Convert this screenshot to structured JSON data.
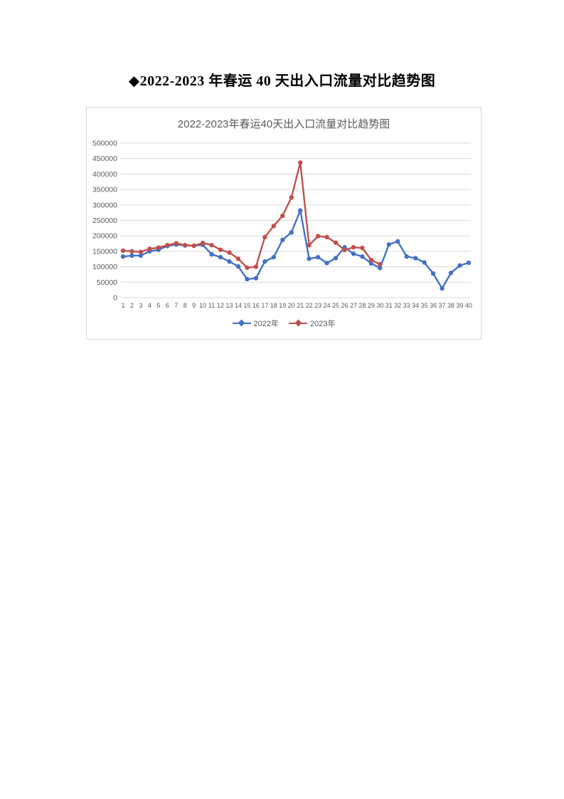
{
  "page": {
    "title": "◆2022-2023 年春运 40 天出入口流量对比趋势图"
  },
  "chart_data": {
    "type": "line",
    "title": "2022-2023年春运40天出入口流量对比趋势图",
    "xlabel": "",
    "ylabel": "",
    "ylim": [
      0,
      500000
    ],
    "ytick_step": 50000,
    "ytick_labels": [
      "0",
      "50000",
      "100000",
      "150000",
      "200000",
      "250000",
      "300000",
      "350000",
      "400000",
      "450000",
      "500000"
    ],
    "grid": true,
    "legend_position": "bottom",
    "categories": [
      1,
      2,
      3,
      4,
      5,
      6,
      7,
      8,
      9,
      10,
      11,
      12,
      13,
      14,
      15,
      16,
      17,
      18,
      19,
      20,
      21,
      22,
      23,
      24,
      25,
      26,
      27,
      28,
      29,
      30,
      31,
      32,
      33,
      34,
      35,
      36,
      37,
      38,
      39,
      40
    ],
    "series": [
      {
        "name": "2022年",
        "color": "#4472C4",
        "marker": "round",
        "values": [
          133000,
          136000,
          136000,
          150000,
          155000,
          167000,
          172000,
          169000,
          168000,
          171000,
          140000,
          131000,
          117000,
          101000,
          60000,
          63000,
          117000,
          131000,
          187000,
          211000,
          282000,
          126000,
          131000,
          112000,
          128000,
          163000,
          142000,
          133000,
          111000,
          96000,
          172000,
          182000,
          133000,
          128000,
          114000,
          78000,
          30000,
          80000,
          104000,
          113000
        ]
      },
      {
        "name": "2023年",
        "color": "#C0504D",
        "marker": "round",
        "values": [
          152000,
          150000,
          148000,
          158000,
          162000,
          170000,
          176000,
          170000,
          168000,
          177000,
          170000,
          155000,
          146000,
          126000,
          97000,
          100000,
          196000,
          232000,
          265000,
          324000,
          437000,
          170000,
          199000,
          196000,
          178000,
          154000,
          163000,
          161000,
          122000,
          108000
        ]
      }
    ],
    "colors": {
      "grid": "#D9D9D9",
      "axis_text": "#595959",
      "title_text": "#595959",
      "frame_border": "#D8D8D8"
    }
  }
}
